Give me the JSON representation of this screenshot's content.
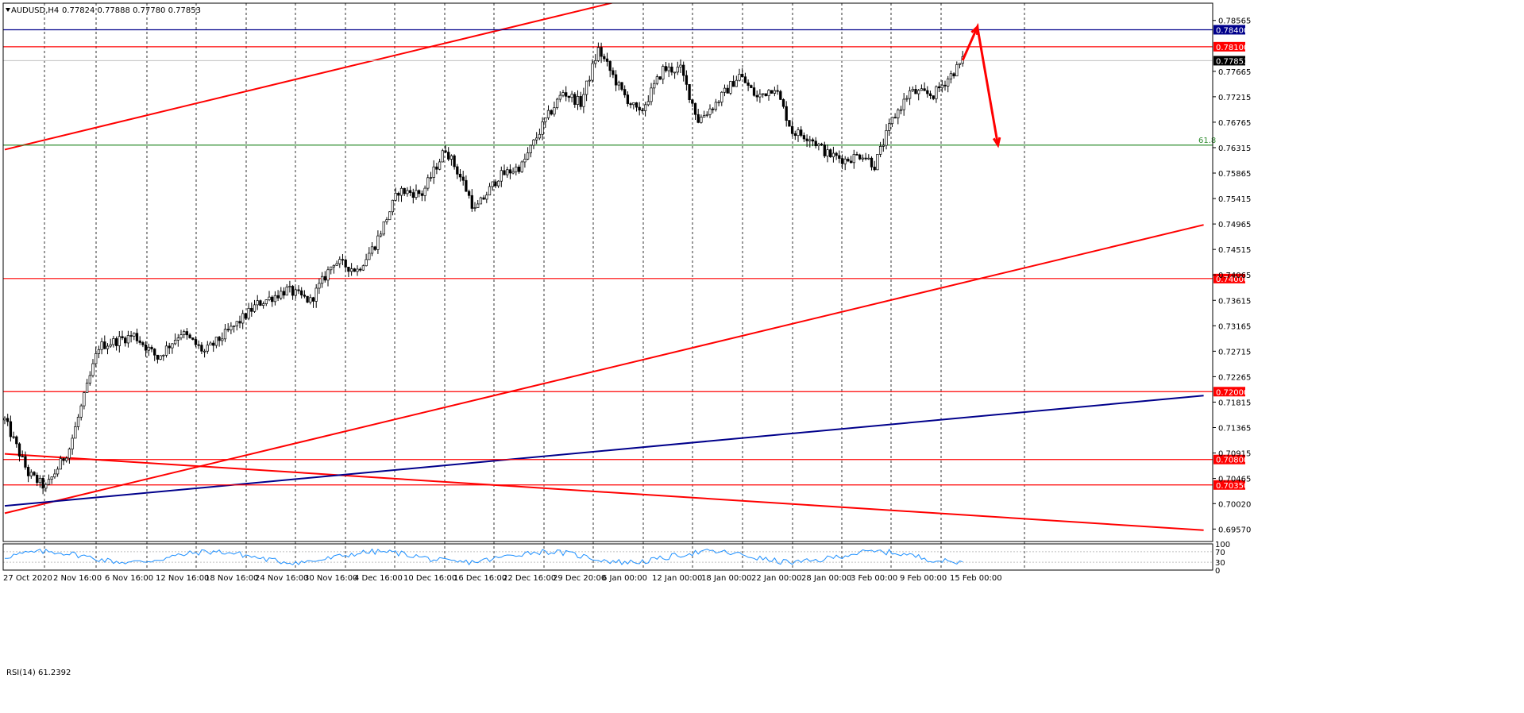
{
  "header": {
    "symbol": "AUDUSD,H4",
    "ohlc": "0.77824 0.77888 0.77780 0.77853"
  },
  "rsi": {
    "label": "RSI(14) 61.2392",
    "levels": [
      "100",
      "70",
      "30",
      "0"
    ],
    "color": "#1e90ff"
  },
  "colors": {
    "bull": "#ffffff",
    "bear": "#000000",
    "red_line": "#ff0000",
    "blue_line": "#00008b",
    "green_line": "#2e8b2e",
    "current": "#000000",
    "grid": "#000000"
  },
  "chart_data": {
    "type": "candlestick",
    "symbol": "AUDUSD",
    "timeframe": "H4",
    "x_labels": [
      "27 Oct 2020",
      "2 Nov 16:00",
      "6 Nov 16:00",
      "12 Nov 16:00",
      "18 Nov 16:00",
      "24 Nov 16:00",
      "30 Nov 16:00",
      "4 Dec 16:00",
      "10 Dec 16:00",
      "16 Dec 16:00",
      "22 Dec 16:00",
      "29 Dec 20:00",
      "6 Jan 00:00",
      "12 Jan 00:00",
      "18 Jan 00:00",
      "22 Jan 00:00",
      "28 Jan 00:00",
      "3 Feb 00:00",
      "9 Feb 00:00",
      "15 Feb 00:00"
    ],
    "y_ticks": [
      "0.78565",
      "0.77665",
      "0.77215",
      "0.76765",
      "0.76315",
      "0.75865",
      "0.75415",
      "0.74965",
      "0.74515",
      "0.74065",
      "0.73615",
      "0.73165",
      "0.72715",
      "0.72265",
      "0.71815",
      "0.71365",
      "0.70915",
      "0.70465",
      "0.70020",
      "0.69570"
    ],
    "ylim": [
      0.6935,
      0.7887
    ],
    "price_lines": [
      {
        "price": 0.784,
        "label": "0.78400",
        "color": "blue"
      },
      {
        "price": 0.781,
        "label": "0.78100",
        "color": "red"
      },
      {
        "price": 0.74,
        "label": "0.74000",
        "color": "red"
      },
      {
        "price": 0.72,
        "label": "0.72000",
        "color": "red"
      },
      {
        "price": 0.708,
        "label": "0.70800",
        "color": "red"
      },
      {
        "price": 0.7035,
        "label": "0.70350",
        "color": "red"
      }
    ],
    "current_price": {
      "price": 0.77853,
      "label": "0.77853"
    },
    "fib_level": {
      "price": 0.7636,
      "label": "61.8"
    },
    "path_anchors": [
      {
        "bar": 0,
        "price": 0.715
      },
      {
        "bar": 8,
        "price": 0.7055
      },
      {
        "bar": 14,
        "price": 0.703
      },
      {
        "bar": 22,
        "price": 0.71
      },
      {
        "bar": 32,
        "price": 0.728
      },
      {
        "bar": 44,
        "price": 0.73
      },
      {
        "bar": 52,
        "price": 0.726
      },
      {
        "bar": 60,
        "price": 0.7305
      },
      {
        "bar": 68,
        "price": 0.727
      },
      {
        "bar": 78,
        "price": 0.7315
      },
      {
        "bar": 86,
        "price": 0.7355
      },
      {
        "bar": 96,
        "price": 0.738
      },
      {
        "bar": 104,
        "price": 0.736
      },
      {
        "bar": 112,
        "price": 0.743
      },
      {
        "bar": 120,
        "price": 0.7415
      },
      {
        "bar": 126,
        "price": 0.746
      },
      {
        "bar": 134,
        "price": 0.7555
      },
      {
        "bar": 142,
        "price": 0.755
      },
      {
        "bar": 150,
        "price": 0.763
      },
      {
        "bar": 156,
        "price": 0.757
      },
      {
        "bar": 160,
        "price": 0.752
      },
      {
        "bar": 168,
        "price": 0.758
      },
      {
        "bar": 176,
        "price": 0.76
      },
      {
        "bar": 184,
        "price": 0.768
      },
      {
        "bar": 190,
        "price": 0.773
      },
      {
        "bar": 196,
        "price": 0.771
      },
      {
        "bar": 202,
        "price": 0.7805
      },
      {
        "bar": 210,
        "price": 0.773
      },
      {
        "bar": 216,
        "price": 0.769
      },
      {
        "bar": 224,
        "price": 0.777
      },
      {
        "bar": 230,
        "price": 0.777
      },
      {
        "bar": 236,
        "price": 0.768
      },
      {
        "bar": 242,
        "price": 0.771
      },
      {
        "bar": 250,
        "price": 0.776
      },
      {
        "bar": 256,
        "price": 0.772
      },
      {
        "bar": 262,
        "price": 0.774
      },
      {
        "bar": 268,
        "price": 0.766
      },
      {
        "bar": 274,
        "price": 0.765
      },
      {
        "bar": 280,
        "price": 0.762
      },
      {
        "bar": 286,
        "price": 0.761
      },
      {
        "bar": 292,
        "price": 0.762
      },
      {
        "bar": 296,
        "price": 0.76
      },
      {
        "bar": 302,
        "price": 0.768
      },
      {
        "bar": 308,
        "price": 0.773
      },
      {
        "bar": 316,
        "price": 0.7725
      },
      {
        "bar": 322,
        "price": 0.776
      },
      {
        "bar": 326,
        "price": 0.7785
      }
    ],
    "bar_count": 327,
    "trendlines": [
      {
        "name": "channel-upper",
        "color": "red",
        "from": {
          "bar": 0,
          "price": 0.7628
        },
        "to": {
          "bar": 215,
          "price": 0.7898
        }
      },
      {
        "name": "channel-lower",
        "color": "red",
        "from": {
          "bar": 0,
          "price": 0.6985
        },
        "to": {
          "bar": 408,
          "price": 0.7495
        }
      },
      {
        "name": "descending",
        "color": "red",
        "from": {
          "bar": 0,
          "price": 0.709
        },
        "to": {
          "bar": 408,
          "price": 0.6955
        }
      },
      {
        "name": "blue-support",
        "color": "blue",
        "from": {
          "bar": 0,
          "price": 0.6998
        },
        "to": {
          "bar": 408,
          "price": 0.7193
        }
      }
    ],
    "projection": [
      {
        "bar": 326,
        "price": 0.7786
      },
      {
        "bar": 331,
        "price": 0.7845
      },
      {
        "bar": 338,
        "price": 0.7636
      }
    ]
  }
}
